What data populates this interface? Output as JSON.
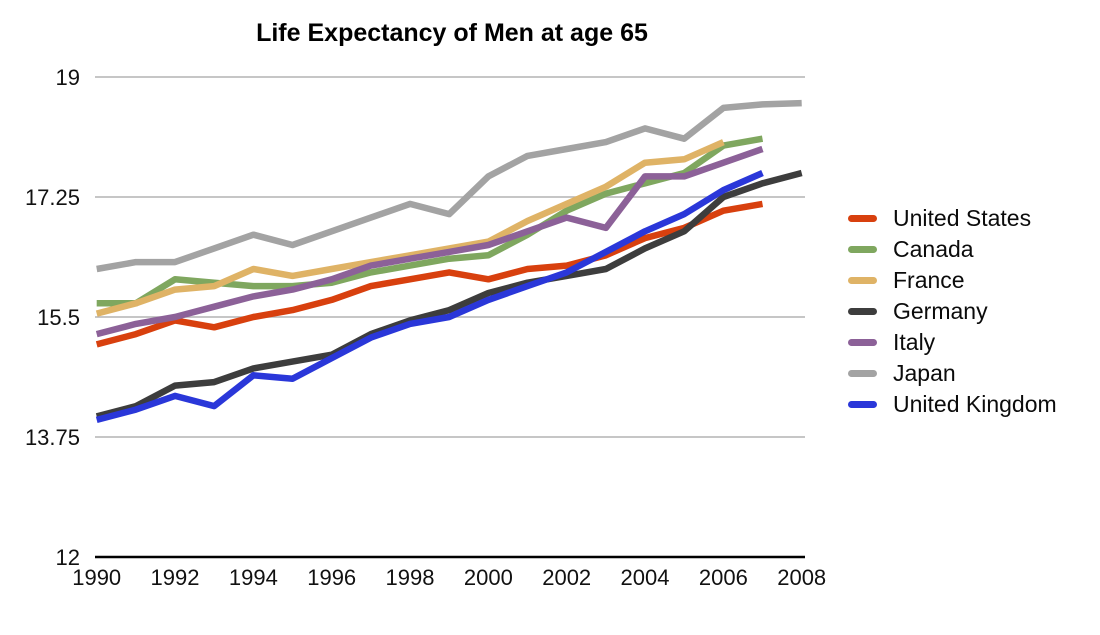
{
  "chart_data": {
    "type": "line",
    "title": "Life Expectancy of Men at age 65",
    "xlabel": "",
    "ylabel": "",
    "xlim": [
      1990,
      2008
    ],
    "ylim": [
      12,
      19
    ],
    "grid": "horizontal",
    "legend_position": "right",
    "x_tick_labels": [
      "1990",
      "1992",
      "1994",
      "1996",
      "1998",
      "2000",
      "2002",
      "2004",
      "2006",
      "2008"
    ],
    "y_ticks": [
      19,
      17.25,
      15.5,
      13.75,
      12
    ],
    "y_tick_labels": [
      "19",
      "17.25",
      "15.5",
      "13.75",
      "12"
    ],
    "series": [
      {
        "name": "United States",
        "color": "#d8400e",
        "start_year": 1990,
        "values": [
          15.1,
          15.25,
          15.45,
          15.35,
          15.5,
          15.6,
          15.75,
          15.95,
          16.05,
          16.15,
          16.05,
          16.2,
          16.25,
          16.4,
          16.65,
          16.8,
          17.05,
          17.15
        ]
      },
      {
        "name": "Canada",
        "color": "#7fa75f",
        "start_year": 1990,
        "values": [
          15.7,
          15.7,
          16.05,
          16.0,
          15.95,
          15.95,
          16.0,
          16.15,
          16.25,
          16.35,
          16.4,
          16.7,
          17.05,
          17.3,
          17.45,
          17.6,
          18.0,
          18.1
        ]
      },
      {
        "name": "France",
        "color": "#dfb366",
        "start_year": 1990,
        "values": [
          15.55,
          15.7,
          15.9,
          15.95,
          16.2,
          16.1,
          16.2,
          16.3,
          16.4,
          16.5,
          16.6,
          16.9,
          17.15,
          17.4,
          17.75,
          17.8,
          18.05
        ]
      },
      {
        "name": "Germany",
        "color": "#3d3d3d",
        "start_year": 1990,
        "values": [
          14.05,
          14.2,
          14.5,
          14.55,
          14.75,
          14.85,
          14.95,
          15.25,
          15.45,
          15.6,
          15.85,
          16.0,
          16.1,
          16.2,
          16.5,
          16.75,
          17.25,
          17.45,
          17.6
        ]
      },
      {
        "name": "Italy",
        "color": "#8c6198",
        "start_year": 1990,
        "values": [
          15.25,
          15.4,
          15.5,
          15.65,
          15.8,
          15.9,
          16.05,
          16.25,
          16.35,
          16.45,
          16.55,
          16.75,
          16.95,
          16.8,
          17.55,
          17.55,
          17.75,
          17.95
        ]
      },
      {
        "name": "Japan",
        "color": "#a3a3a3",
        "start_year": 1990,
        "values": [
          16.2,
          16.3,
          16.3,
          16.5,
          16.7,
          16.55,
          16.75,
          16.95,
          17.15,
          17.0,
          17.55,
          17.85,
          17.95,
          18.05,
          18.25,
          18.1,
          18.55,
          18.6,
          18.62
        ]
      },
      {
        "name": "United Kingdom",
        "color": "#2a37d9",
        "start_year": 1990,
        "values": [
          14.0,
          14.15,
          14.35,
          14.2,
          14.65,
          14.6,
          14.9,
          15.2,
          15.4,
          15.5,
          15.75,
          15.95,
          16.15,
          16.45,
          16.75,
          17.0,
          17.35,
          17.6
        ]
      }
    ],
    "colors": {
      "grid": "#b3b3b3",
      "axis": "#000000",
      "tick_label": "#111111",
      "title": "#000000"
    }
  }
}
